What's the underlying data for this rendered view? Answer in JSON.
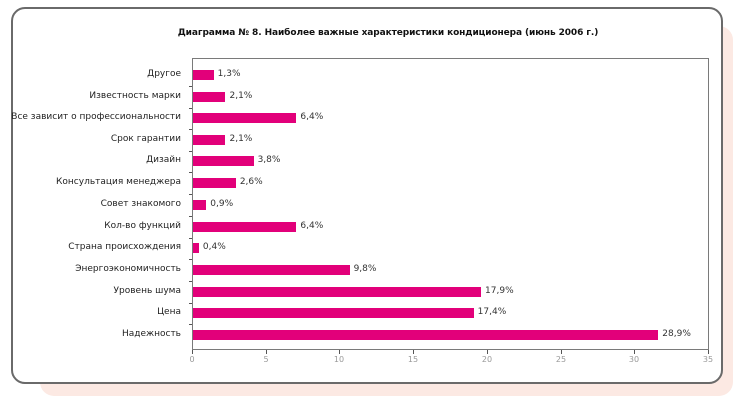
{
  "chart_data": {
    "type": "bar",
    "orientation": "horizontal",
    "title": "Диаграмма № 8. Наиболее важные характеристики кондиционера (июнь 2006 г.)",
    "xlabel": "",
    "ylabel": "",
    "xlim": [
      0,
      35
    ],
    "x_ticks": [
      "0",
      "5",
      "10",
      "15",
      "20",
      "25",
      "30",
      "35"
    ],
    "grid": false,
    "legend": null,
    "bar_color": "#e2007a",
    "categories": [
      "Другое",
      "Известность марки",
      "Все зависит о профессиональности",
      "Срок гарантии",
      "Дизайн",
      "Консультация менеджера",
      "Совет знакомого",
      "Кол-во функций",
      "Страна происхождения",
      "Энергоэкономичность",
      "Уровень шума",
      "Цена",
      "Надежность"
    ],
    "values": [
      1.3,
      2.1,
      6.4,
      2.1,
      3.8,
      2.6,
      0.9,
      6.4,
      0.4,
      9.8,
      17.9,
      17.4,
      28.9
    ],
    "value_labels": [
      "1,3%",
      "2,1%",
      "6,4%",
      "2,1%",
      "3,8%",
      "2,6%",
      "0,9%",
      "6,4%",
      "0,4%",
      "9,8%",
      "17,9%",
      "17,4%",
      "28,9%"
    ],
    "bar_lengths_on_axis": [
      1.4,
      2.2,
      7.0,
      2.2,
      4.1,
      2.9,
      0.9,
      7.0,
      0.4,
      10.6,
      19.5,
      19.0,
      31.5
    ]
  }
}
